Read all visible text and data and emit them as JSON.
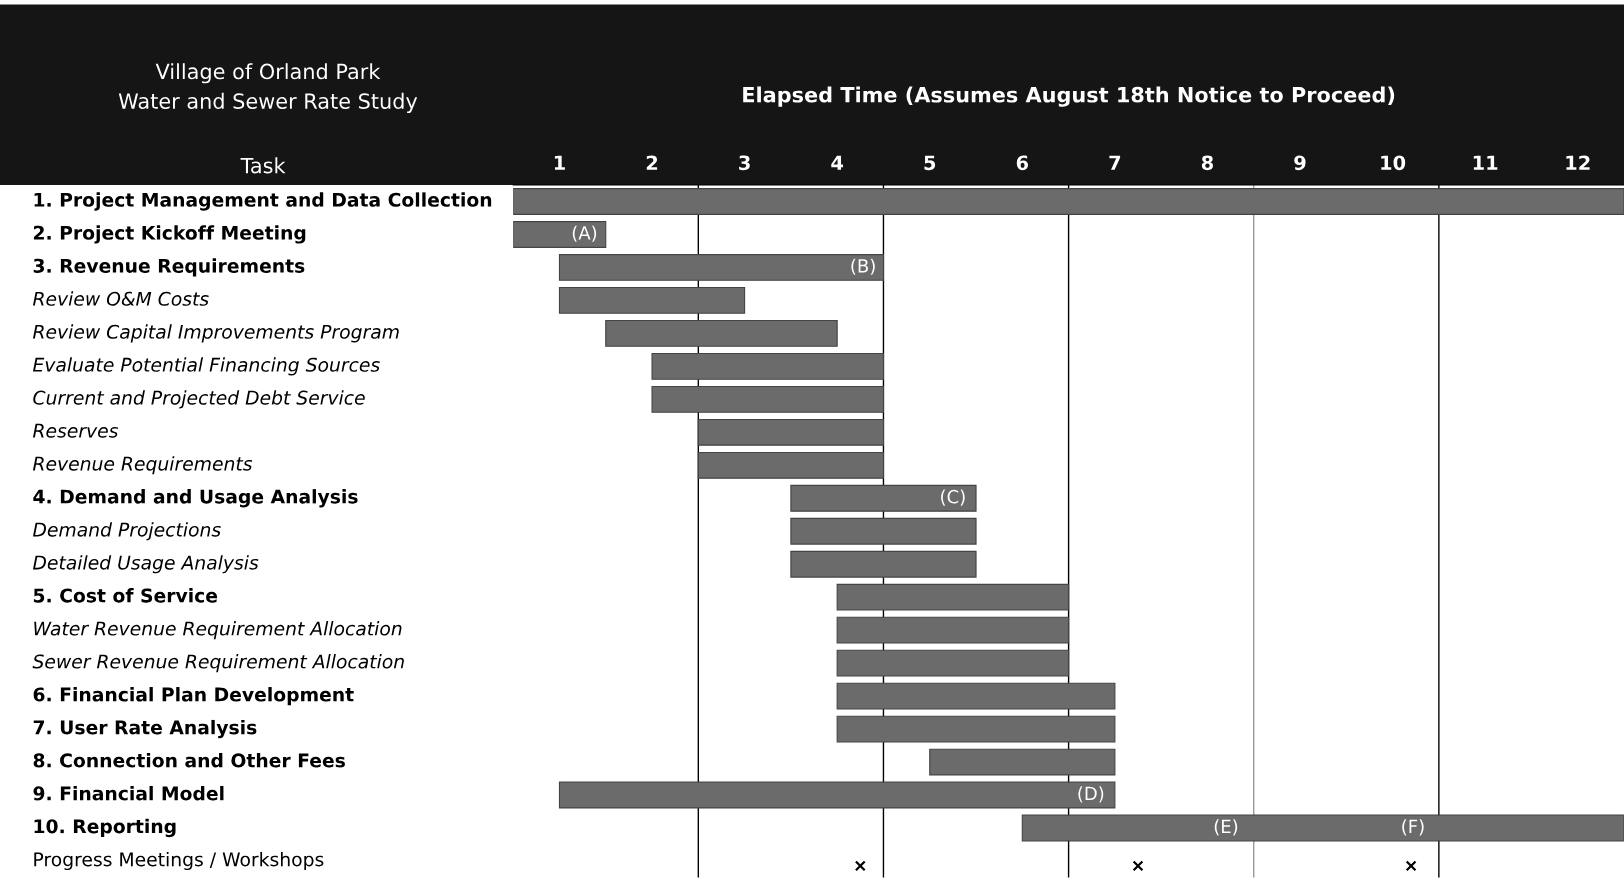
{
  "chart_data": {
    "type": "bar",
    "orientation": "horizontal",
    "title": "Village of Orland Park\nWater and Sewer Rate Study",
    "xlabel": "Elapsed Time (Assumes August 18th Notice to Proceed)",
    "ylabel": "Task",
    "categories": [
      "1. Project Management and Data Collection",
      "2. Project Kickoff Meeting",
      "3. Revenue Requirements",
      "Review O&M Costs",
      "Review Capital Improvements Program",
      "Evaluate Potential Financing Sources",
      "Current and Projected Debt Service",
      "Reserves",
      "Revenue Requirements",
      "4. Demand and Usage Analysis",
      "Demand Projections",
      "Detailed Usage Analysis",
      "5. Cost of Service",
      "Water Revenue Requirement Allocation",
      "Sewer Revenue Requirement Allocation",
      "6. Financial Plan Development",
      "7. User Rate Analysis",
      "8. Connection and Other Fees",
      "9. Financial Model",
      "10. Reporting",
      "Progress Meetings / Workshops"
    ],
    "base": [
      0,
      0,
      0.5,
      0.5,
      1,
      1.5,
      1.5,
      2,
      2,
      3,
      3,
      3,
      3.5,
      3.5,
      3.5,
      3.5,
      3.5,
      4.5,
      0.5,
      5.5,
      null
    ],
    "values": [
      12,
      1,
      3.5,
      2,
      2.5,
      2.5,
      2.5,
      2,
      2,
      2,
      2,
      2,
      2.5,
      2.5,
      2.5,
      3,
      3,
      2,
      6,
      6.5,
      null
    ],
    "color": "#6b6b6b",
    "xlim": [
      0,
      12
    ],
    "xticks": [
      {
        "value": 0.5,
        "label": "1"
      },
      {
        "value": 1.5,
        "label": "2"
      },
      {
        "value": 2.5,
        "label": "3"
      },
      {
        "value": 3.5,
        "label": "4"
      },
      {
        "value": 4.5,
        "label": "5"
      },
      {
        "value": 5.5,
        "label": "6"
      },
      {
        "value": 6.5,
        "label": "7"
      },
      {
        "value": 7.5,
        "label": "8"
      },
      {
        "value": 8.5,
        "label": "9"
      },
      {
        "value": 9.5,
        "label": "10"
      },
      {
        "value": 10.5,
        "label": "11"
      },
      {
        "value": 11.5,
        "label": "12"
      }
    ],
    "tick_labels": "x",
    "ref_lines": [
      {
        "axis": "x",
        "value": 2,
        "color": "#000000"
      },
      {
        "axis": "x",
        "value": 4,
        "color": "#000000"
      },
      {
        "axis": "x",
        "value": 6,
        "color": "#000000"
      },
      {
        "axis": "x",
        "value": 8,
        "color": "#999999"
      },
      {
        "axis": "x",
        "value": 10,
        "color": "#000000"
      }
    ],
    "annotations": [
      {
        "text": "(A)",
        "x": 0.77,
        "y": "2. Project Kickoff Meeting"
      },
      {
        "text": "(B)",
        "x": 3.78,
        "y": "3. Revenue Requirements"
      },
      {
        "text": "(C)",
        "x": 4.75,
        "y": "4. Demand and Usage Analysis"
      },
      {
        "text": "(D)",
        "x": 6.24,
        "y": "9. Financial Model"
      },
      {
        "text": "(E)",
        "x": 7.7,
        "y": "10. Reporting"
      },
      {
        "text": "(F)",
        "x": 9.72,
        "y": "10. Reporting"
      }
    ],
    "series": [
      {
        "type": "scatter",
        "marker": "cross",
        "color": "#000000",
        "values": [
          null,
          null,
          null,
          null,
          null,
          null,
          null,
          null,
          null,
          null,
          null,
          null,
          null,
          null,
          null,
          null,
          null,
          null,
          null,
          null,
          3.75
        ]
      },
      {
        "type": "scatter",
        "marker": "cross",
        "color": "#000000",
        "values": [
          null,
          null,
          null,
          null,
          null,
          null,
          null,
          null,
          null,
          null,
          null,
          null,
          null,
          null,
          null,
          null,
          null,
          null,
          null,
          null,
          6.75
        ]
      },
      {
        "type": "scatter",
        "marker": "cross",
        "color": "#000000",
        "values": [
          null,
          null,
          null,
          null,
          null,
          null,
          null,
          null,
          null,
          null,
          null,
          null,
          null,
          null,
          null,
          null,
          null,
          null,
          null,
          null,
          9.7
        ]
      }
    ],
    "grid": false,
    "legend": false
  }
}
